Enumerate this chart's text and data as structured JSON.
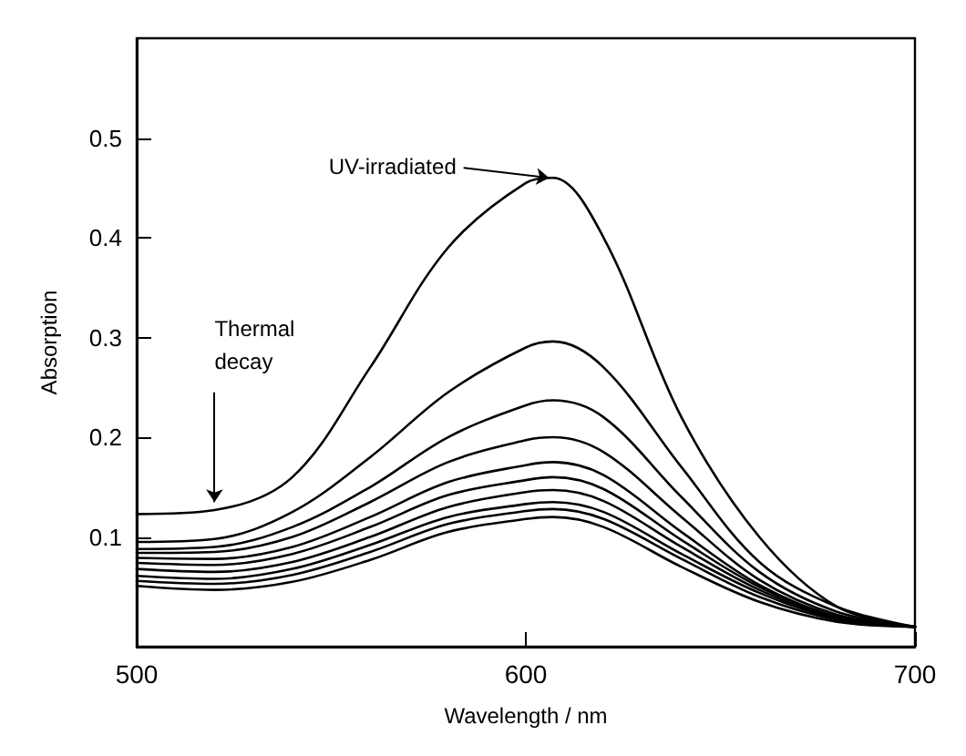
{
  "chart_data": {
    "type": "line",
    "xlabel": "Wavelength / nm",
    "ylabel": "Absorption",
    "x": [
      500,
      520,
      540,
      560,
      580,
      600,
      607,
      620,
      640,
      660,
      680,
      700
    ],
    "series": [
      {
        "color": "#000000",
        "values": [
          0.123,
          0.127,
          0.16,
          0.27,
          0.39,
          0.455,
          0.46,
          0.4,
          0.22,
          0.1,
          0.03,
          0.01
        ]
      },
      {
        "color": "#000000",
        "values": [
          0.095,
          0.098,
          0.125,
          0.18,
          0.245,
          0.29,
          0.296,
          0.27,
          0.17,
          0.075,
          0.03,
          0.01
        ]
      },
      {
        "color": "#000000",
        "values": [
          0.088,
          0.09,
          0.11,
          0.15,
          0.2,
          0.232,
          0.237,
          0.22,
          0.14,
          0.065,
          0.025,
          0.01
        ]
      },
      {
        "color": "#000000",
        "values": [
          0.084,
          0.085,
          0.1,
          0.135,
          0.175,
          0.197,
          0.2,
          0.185,
          0.12,
          0.057,
          0.022,
          0.01
        ]
      },
      {
        "color": "#000000",
        "values": [
          0.079,
          0.078,
          0.09,
          0.12,
          0.155,
          0.172,
          0.175,
          0.162,
          0.105,
          0.052,
          0.02,
          0.01
        ]
      },
      {
        "color": "#000000",
        "values": [
          0.074,
          0.072,
          0.083,
          0.11,
          0.142,
          0.157,
          0.16,
          0.148,
          0.097,
          0.05,
          0.02,
          0.01
        ]
      },
      {
        "color": "#000000",
        "values": [
          0.068,
          0.065,
          0.075,
          0.1,
          0.13,
          0.145,
          0.147,
          0.136,
          0.09,
          0.047,
          0.019,
          0.01
        ]
      },
      {
        "color": "#000000",
        "values": [
          0.061,
          0.058,
          0.068,
          0.092,
          0.12,
          0.133,
          0.135,
          0.125,
          0.083,
          0.044,
          0.018,
          0.01
        ]
      },
      {
        "color": "#000000",
        "values": [
          0.056,
          0.053,
          0.062,
          0.085,
          0.113,
          0.126,
          0.128,
          0.118,
          0.078,
          0.04,
          0.017,
          0.01
        ]
      },
      {
        "color": "#000000",
        "values": [
          0.051,
          0.047,
          0.055,
          0.077,
          0.105,
          0.118,
          0.12,
          0.11,
          0.07,
          0.035,
          0.015,
          0.01
        ]
      }
    ],
    "xlim": [
      500,
      700
    ],
    "xticks": [
      500,
      600,
      700
    ],
    "ylim": [
      -0.01,
      0.6
    ],
    "yticks": [
      0.1,
      0.2,
      0.3,
      0.4,
      0.5
    ],
    "grid": false,
    "marker": "none",
    "line_style": "solid",
    "annotations": [
      {
        "text": "UV-irradiated",
        "x": 606,
        "y": 0.46
      },
      {
        "text": "Thermal decay",
        "x": 520,
        "y": 0.135
      }
    ]
  }
}
